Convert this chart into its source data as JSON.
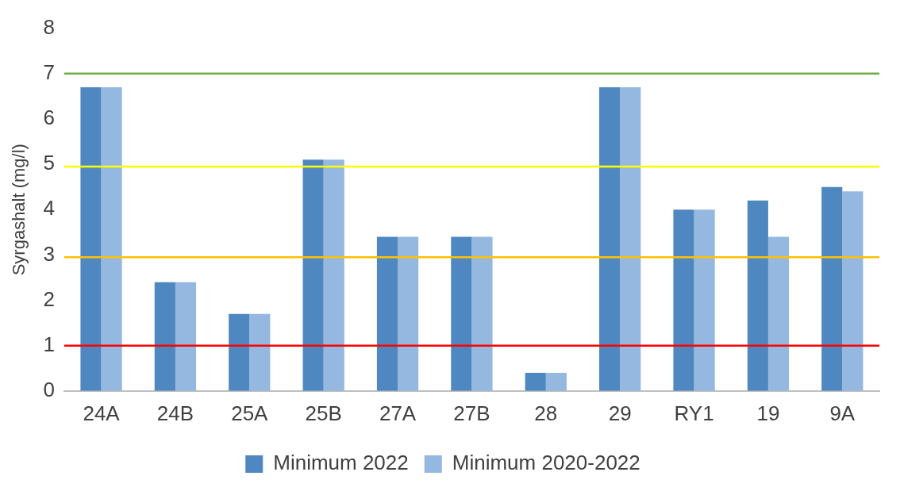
{
  "chart_data": {
    "type": "bar",
    "ylabel": "Syrgashalt (mg/l)",
    "categories": [
      "24A",
      "24B",
      "25A",
      "25B",
      "27A",
      "27B",
      "28",
      "29",
      "RY1",
      "19",
      "9A"
    ],
    "series": [
      {
        "name": "Minimum 2022",
        "color": "#4f88c0",
        "values": [
          6.7,
          2.4,
          1.7,
          5.1,
          3.4,
          3.4,
          0.4,
          6.7,
          4.0,
          4.2,
          4.5
        ]
      },
      {
        "name": "Minimum 2020-2022",
        "color": "#95b8e0",
        "values": [
          6.7,
          2.4,
          1.7,
          5.1,
          3.4,
          3.4,
          0.4,
          6.7,
          4.0,
          3.4,
          4.4
        ]
      }
    ],
    "ylim": [
      0,
      8
    ],
    "yticks": [
      0,
      1,
      2,
      3,
      4,
      5,
      6,
      7,
      8
    ],
    "grid": false,
    "legend": "bottom",
    "ref_lines": [
      {
        "axis": "y",
        "value": 7,
        "color": "#70ad47"
      },
      {
        "axis": "y",
        "value": 4.95,
        "color": "#ffff00"
      },
      {
        "axis": "y",
        "value": 2.95,
        "color": "#ffc000"
      },
      {
        "axis": "y",
        "value": 1,
        "color": "#ff0000"
      }
    ]
  }
}
